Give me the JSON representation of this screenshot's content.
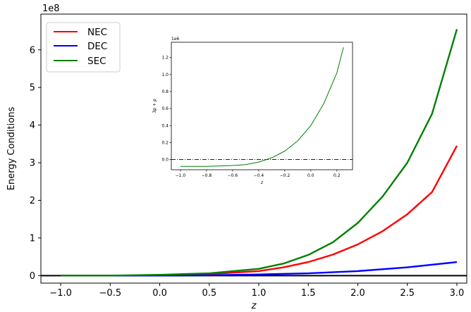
{
  "chart_data": [
    {
      "type": "line",
      "xlabel": "z",
      "ylabel": "Energy Conditions",
      "y_offset_text": "1e8",
      "xlim": [
        -1.2,
        3.1
      ],
      "ylim": [
        -0.2,
        6.95
      ],
      "x_ticks": [
        -1.0,
        -0.5,
        0.0,
        0.5,
        1.0,
        1.5,
        2.0,
        2.5,
        3.0
      ],
      "x_tick_labels": [
        "−1.0",
        "−0.5",
        "0.0",
        "0.5",
        "1.0",
        "1.5",
        "2.0",
        "2.5",
        "3.0"
      ],
      "y_ticks": [
        0,
        1,
        2,
        3,
        4,
        5,
        6
      ],
      "y_tick_labels": [
        "0",
        "1",
        "2",
        "3",
        "4",
        "5",
        "6"
      ],
      "grid": false,
      "legend_position": "top-left",
      "zero_line": true,
      "series": [
        {
          "name": "NEC",
          "color": "#ff0000",
          "x": [
            -1.0,
            -0.5,
            0.0,
            0.5,
            1.0,
            1.25,
            1.5,
            1.75,
            2.0,
            2.25,
            2.5,
            2.75,
            3.0
          ],
          "y": [
            0.0,
            0.0,
            0.01,
            0.04,
            0.12,
            0.22,
            0.36,
            0.56,
            0.83,
            1.18,
            1.63,
            2.22,
            3.45
          ]
        },
        {
          "name": "DEC",
          "color": "#0000ff",
          "x": [
            -1.0,
            -0.5,
            0.0,
            0.5,
            1.0,
            1.5,
            2.0,
            2.5,
            3.0
          ],
          "y": [
            0.0,
            0.0,
            0.0,
            0.01,
            0.03,
            0.06,
            0.12,
            0.22,
            0.36
          ]
        },
        {
          "name": "SEC",
          "color": "#008000",
          "x": [
            -1.0,
            -0.5,
            0.0,
            0.5,
            1.0,
            1.25,
            1.5,
            1.75,
            2.0,
            2.25,
            2.5,
            2.75,
            3.0
          ],
          "y": [
            0.0,
            0.0,
            0.02,
            0.06,
            0.18,
            0.32,
            0.55,
            0.89,
            1.4,
            2.1,
            3.0,
            4.3,
            6.55
          ]
        }
      ]
    },
    {
      "type": "line",
      "role": "inset",
      "xlabel": "z",
      "ylabel": "3p + ρ",
      "y_offset_text": "1e6",
      "xlim": [
        -1.07,
        0.32
      ],
      "ylim": [
        -0.12,
        1.38
      ],
      "x_ticks": [
        -1.0,
        -0.8,
        -0.6,
        -0.4,
        -0.2,
        0.0,
        0.2
      ],
      "x_tick_labels": [
        "−1.0",
        "−0.8",
        "−0.6",
        "−0.4",
        "−0.2",
        "0.0",
        "0.2"
      ],
      "y_ticks": [
        0.0,
        0.2,
        0.4,
        0.6,
        0.8,
        1.0,
        1.2
      ],
      "y_tick_labels": [
        "0.0",
        "0.2",
        "0.4",
        "0.6",
        "0.8",
        "1.0",
        "1.2"
      ],
      "reference_line": {
        "y": 0.0,
        "style": "dash-dot",
        "color": "#000000"
      },
      "series": [
        {
          "color": "#008000",
          "x": [
            -1.0,
            -0.8,
            -0.6,
            -0.5,
            -0.4,
            -0.3,
            -0.2,
            -0.1,
            0.0,
            0.1,
            0.2,
            0.25
          ],
          "y": [
            -0.08,
            -0.08,
            -0.07,
            -0.06,
            -0.03,
            0.02,
            0.1,
            0.22,
            0.4,
            0.66,
            1.02,
            1.32
          ]
        }
      ]
    }
  ]
}
